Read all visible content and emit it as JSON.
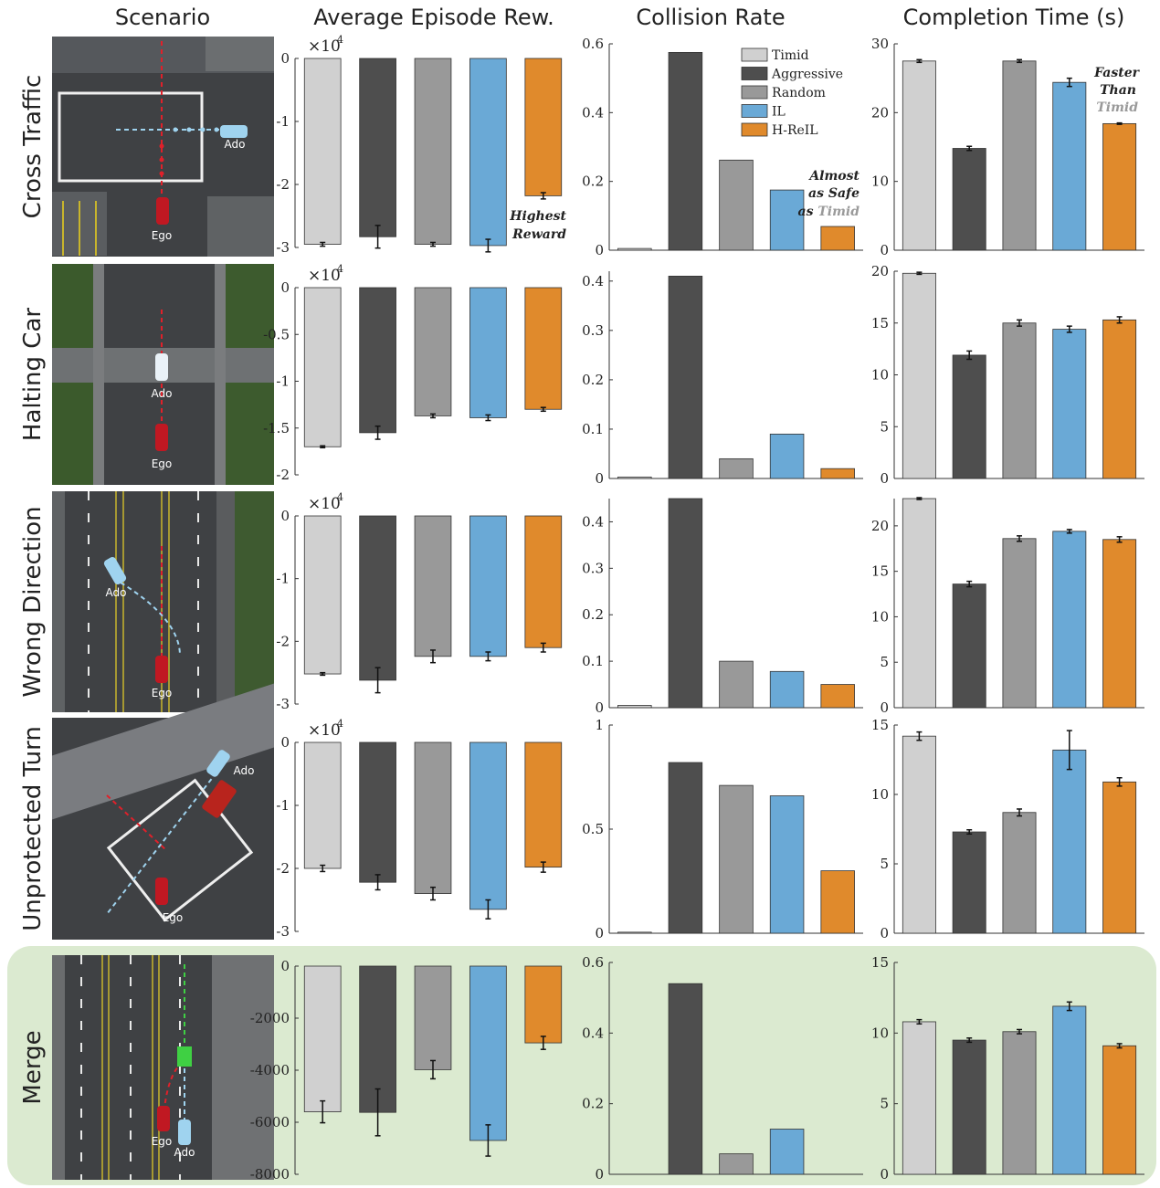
{
  "headers": [
    "Scenario",
    "Average Episode Rew.",
    "Collision Rate",
    "Completion Time (s)"
  ],
  "legend": [
    {
      "label": "Timid",
      "color": "#d0d0d0"
    },
    {
      "label": "Aggressive",
      "color": "#4e4e4e"
    },
    {
      "label": "Random",
      "color": "#999999"
    },
    {
      "label": "IL",
      "color": "#6aa9d6"
    },
    {
      "label": "H-ReIL",
      "color": "#e08a2c"
    }
  ],
  "scene_labels": {
    "ego": "Ego",
    "ado": "Ado"
  },
  "multiplier": "×10",
  "multiplier_exp": "4",
  "annotations": {
    "reward": [
      "Highest",
      "Reward"
    ],
    "collision": [
      "Almost",
      "as Safe",
      "as ",
      "Timid"
    ],
    "time": [
      "Faster",
      "Than",
      "Timid"
    ]
  },
  "highlight_color": "#dbead0",
  "chart_data": [
    {
      "scenario": "Cross Traffic",
      "reward": {
        "type": "bar",
        "categories": [
          "Timid",
          "Aggressive",
          "Random",
          "IL",
          "H-ReIL"
        ],
        "values": [
          -2.95,
          -2.83,
          -2.95,
          -2.97,
          -2.18
        ],
        "errors": [
          0.03,
          0.18,
          0.03,
          0.1,
          0.05
        ],
        "ylim": [
          -3,
          0
        ],
        "ticks": [
          0,
          -1,
          -2,
          -3
        ],
        "tick_labels": [
          "0",
          "-1",
          "-2",
          "-3"
        ],
        "scale": "×10^4"
      },
      "collision": {
        "type": "bar",
        "categories": [
          "Timid",
          "Aggressive",
          "Random",
          "IL",
          "H-ReIL"
        ],
        "values": [
          0.005,
          0.575,
          0.262,
          0.175,
          0.069
        ],
        "ylim": [
          0,
          0.6
        ],
        "ticks": [
          0,
          0.2,
          0.4,
          0.6
        ],
        "tick_labels": [
          "0",
          "0.2",
          "0.4",
          "0.6"
        ]
      },
      "time": {
        "type": "bar",
        "categories": [
          "Timid",
          "Aggressive",
          "Random",
          "IL",
          "H-ReIL"
        ],
        "values": [
          27.5,
          14.8,
          27.5,
          24.4,
          18.4
        ],
        "errors": [
          0.2,
          0.3,
          0.2,
          0.6,
          0.1
        ],
        "ylim": [
          0,
          30
        ],
        "ticks": [
          0,
          10,
          20,
          30
        ],
        "tick_labels": [
          "0",
          "10",
          "20",
          "30"
        ]
      }
    },
    {
      "scenario": "Halting Car",
      "reward": {
        "type": "bar",
        "categories": [
          "Timid",
          "Aggressive",
          "Random",
          "IL",
          "H-ReIL"
        ],
        "values": [
          -1.7,
          -1.55,
          -1.37,
          -1.39,
          -1.3
        ],
        "errors": [
          0.01,
          0.07,
          0.02,
          0.03,
          0.02
        ],
        "ylim": [
          -2,
          0
        ],
        "ticks": [
          0,
          -0.5,
          -1,
          -1.5,
          -2
        ],
        "tick_labels": [
          "0",
          "-0.5",
          "-1",
          "-1.5",
          "-2"
        ],
        "scale": "×10^4"
      },
      "collision": {
        "type": "bar",
        "categories": [
          "Timid",
          "Aggressive",
          "Random",
          "IL",
          "H-ReIL"
        ],
        "values": [
          0.003,
          0.41,
          0.04,
          0.09,
          0.02
        ],
        "ylim": [
          0,
          0.42
        ],
        "ticks": [
          0,
          0.1,
          0.2,
          0.3,
          0.4
        ],
        "tick_labels": [
          "0",
          "0.1",
          "0.2",
          "0.3",
          "0.4"
        ]
      },
      "time": {
        "type": "bar",
        "categories": [
          "Timid",
          "Aggressive",
          "Random",
          "IL",
          "H-ReIL"
        ],
        "values": [
          19.8,
          11.9,
          15.0,
          14.4,
          15.3
        ],
        "errors": [
          0.1,
          0.4,
          0.3,
          0.3,
          0.3
        ],
        "ylim": [
          0,
          20
        ],
        "ticks": [
          0,
          5,
          10,
          15,
          20
        ],
        "tick_labels": [
          "0",
          "5",
          "10",
          "15",
          "20"
        ]
      }
    },
    {
      "scenario": "Wrong Direction",
      "reward": {
        "type": "bar",
        "categories": [
          "Timid",
          "Aggressive",
          "Random",
          "IL",
          "H-ReIL"
        ],
        "values": [
          -2.52,
          -2.62,
          -2.24,
          -2.24,
          -2.1
        ],
        "errors": [
          0.02,
          0.2,
          0.1,
          0.07,
          0.07
        ],
        "ylim": [
          -3,
          0
        ],
        "ticks": [
          0,
          -1,
          -2,
          -3
        ],
        "tick_labels": [
          "0",
          "-1",
          "-2",
          "-3"
        ],
        "scale": "×10^4"
      },
      "collision": {
        "type": "bar",
        "categories": [
          "Timid",
          "Aggressive",
          "Random",
          "IL",
          "H-ReIL"
        ],
        "values": [
          0.005,
          0.45,
          0.1,
          0.078,
          0.05
        ],
        "ylim": [
          0,
          0.45
        ],
        "ticks": [
          0,
          0.1,
          0.2,
          0.3,
          0.4
        ],
        "tick_labels": [
          "0",
          "0.1",
          "0.2",
          "0.3",
          "0.4"
        ]
      },
      "time": {
        "type": "bar",
        "categories": [
          "Timid",
          "Aggressive",
          "Random",
          "IL",
          "H-ReIL"
        ],
        "values": [
          23.0,
          13.6,
          18.6,
          19.4,
          18.5
        ],
        "errors": [
          0.1,
          0.3,
          0.3,
          0.2,
          0.3
        ],
        "ylim": [
          0,
          23
        ],
        "ticks": [
          0,
          5,
          10,
          15,
          20
        ],
        "tick_labels": [
          "0",
          "5",
          "10",
          "15",
          "20"
        ]
      }
    },
    {
      "scenario": "Unprotected Turn",
      "reward": {
        "type": "bar",
        "categories": [
          "Timid",
          "Aggressive",
          "Random",
          "IL",
          "H-ReIL"
        ],
        "values": [
          -2.0,
          -2.22,
          -2.4,
          -2.65,
          -1.98
        ],
        "errors": [
          0.05,
          0.12,
          0.1,
          0.15,
          0.08
        ],
        "ylim": [
          -3,
          0
        ],
        "ticks": [
          0,
          -1,
          -2,
          -3
        ],
        "tick_labels": [
          "0",
          "-1",
          "-2",
          "-3"
        ],
        "scale": "×10^4"
      },
      "collision": {
        "type": "bar",
        "categories": [
          "Timid",
          "Aggressive",
          "Random",
          "IL",
          "H-ReIL"
        ],
        "values": [
          0.005,
          0.82,
          0.71,
          0.66,
          0.3
        ],
        "ylim": [
          0,
          1
        ],
        "ticks": [
          0,
          0.5,
          1
        ],
        "tick_labels": [
          "0",
          "0.5",
          "1"
        ]
      },
      "time": {
        "type": "bar",
        "categories": [
          "Timid",
          "Aggressive",
          "Random",
          "IL",
          "H-ReIL"
        ],
        "values": [
          14.2,
          7.3,
          8.7,
          13.2,
          10.9
        ],
        "errors": [
          0.3,
          0.15,
          0.25,
          1.4,
          0.3
        ],
        "ylim": [
          0,
          15
        ],
        "ticks": [
          0,
          5,
          10,
          15
        ],
        "tick_labels": [
          "0",
          "5",
          "10",
          "15"
        ]
      }
    },
    {
      "scenario": "Merge",
      "reward": {
        "type": "bar",
        "categories": [
          "Timid",
          "Aggressive",
          "Random",
          "IL",
          "H-ReIL"
        ],
        "values": [
          -5600,
          -5620,
          -3980,
          -6700,
          -2950
        ],
        "errors": [
          420,
          900,
          350,
          600,
          250
        ],
        "ylim": [
          -8000,
          0
        ],
        "ticks": [
          0,
          -2000,
          -4000,
          -6000,
          -8000
        ],
        "tick_labels": [
          "0",
          "-2000",
          "-4000",
          "-6000",
          "-8000"
        ]
      },
      "collision": {
        "type": "bar",
        "categories": [
          "Timid",
          "Aggressive",
          "Random",
          "IL",
          "H-ReIL"
        ],
        "values": [
          0,
          0.54,
          0.058,
          0.128,
          0
        ],
        "ylim": [
          0,
          0.6
        ],
        "ticks": [
          0,
          0.2,
          0.4,
          0.6
        ],
        "tick_labels": [
          "0",
          "0.2",
          "0.4",
          "0.6"
        ]
      },
      "time": {
        "type": "bar",
        "categories": [
          "Timid",
          "Aggressive",
          "Random",
          "IL",
          "H-ReIL"
        ],
        "values": [
          10.8,
          9.5,
          10.1,
          11.9,
          9.1
        ],
        "errors": [
          0.15,
          0.15,
          0.15,
          0.3,
          0.15
        ],
        "ylim": [
          0,
          15
        ],
        "ticks": [
          0,
          5,
          10,
          15
        ],
        "tick_labels": [
          "0",
          "5",
          "10",
          "15"
        ]
      }
    }
  ]
}
